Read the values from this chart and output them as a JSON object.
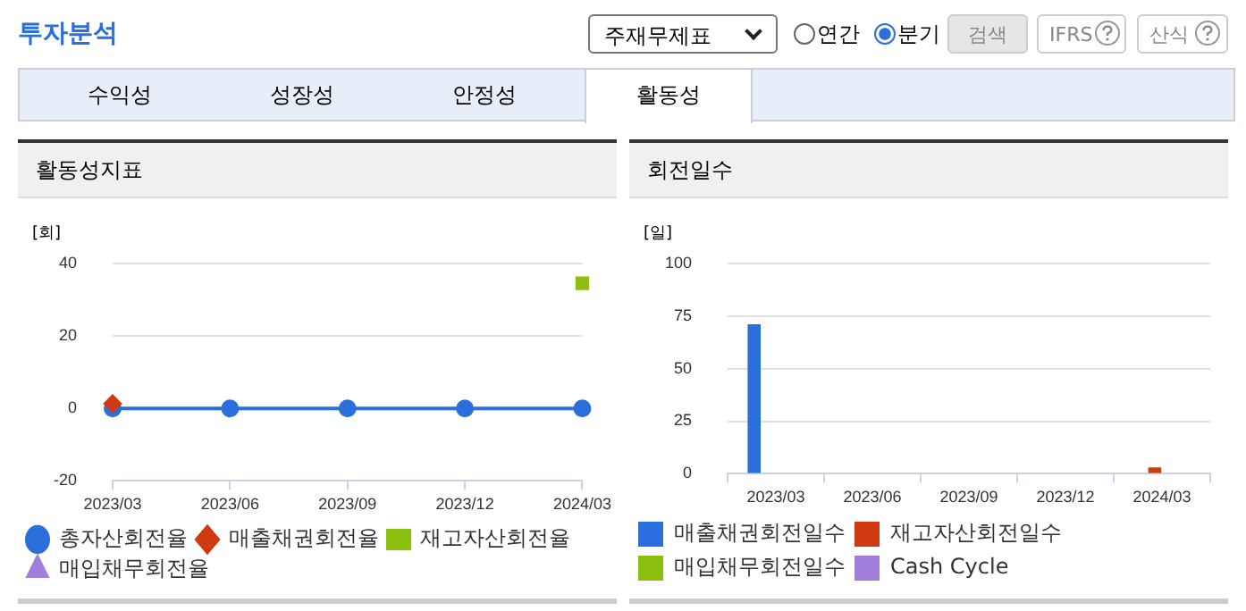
{
  "chart_data": [
    {
      "type": "line",
      "title": "활동성지표",
      "ylabel": "[회]",
      "categories": [
        "2023/03",
        "2023/06",
        "2023/09",
        "2023/12",
        "2024/03"
      ],
      "series": [
        {
          "name": "총자산회전율",
          "color": "#2a6fdb",
          "marker": "circle",
          "values": [
            0,
            0,
            0,
            0,
            0
          ]
        },
        {
          "name": "매출채권회전율",
          "color": "#d03a10",
          "marker": "diamond",
          "values": [
            1.3,
            null,
            null,
            null,
            null
          ]
        },
        {
          "name": "재고자산회전율",
          "color": "#8cc010",
          "marker": "square",
          "values": [
            null,
            null,
            null,
            null,
            34.5
          ]
        },
        {
          "name": "매입채무회전율",
          "color": "#a37fdc",
          "marker": "triangle",
          "values": [
            null,
            null,
            null,
            null,
            null
          ]
        }
      ],
      "ylim": [
        -20,
        40
      ],
      "yticks": [
        -20,
        0,
        20,
        40
      ],
      "grid": "y",
      "legend": "bottom",
      "annotations": [
        "투자분석",
        "주재무제표",
        "연간",
        "분기",
        "검색",
        "IFRS",
        "산식",
        "수익성",
        "성장성",
        "안정성",
        "활동성"
      ]
    },
    {
      "type": "bar",
      "title": "회전일수",
      "ylabel": "[일]",
      "categories": [
        "2023/03",
        "2023/06",
        "2023/09",
        "2023/12",
        "2024/03"
      ],
      "series": [
        {
          "name": "매출채권회전일수",
          "color": "#2a6fdb",
          "values": [
            71,
            null,
            null,
            null,
            null
          ]
        },
        {
          "name": "재고자산회전일수",
          "color": "#d03a10",
          "values": [
            null,
            null,
            null,
            null,
            3
          ]
        },
        {
          "name": "매입채무회전일수",
          "color": "#8cc010",
          "values": [
            null,
            null,
            null,
            null,
            null
          ]
        },
        {
          "name": "Cash Cycle",
          "color": "#a37fdc",
          "values": [
            null,
            null,
            null,
            null,
            null
          ]
        }
      ],
      "ylim": [
        0,
        100
      ],
      "yticks": [
        0,
        25,
        50,
        75,
        100
      ],
      "grid": "y",
      "legend": "bottom"
    }
  ]
}
